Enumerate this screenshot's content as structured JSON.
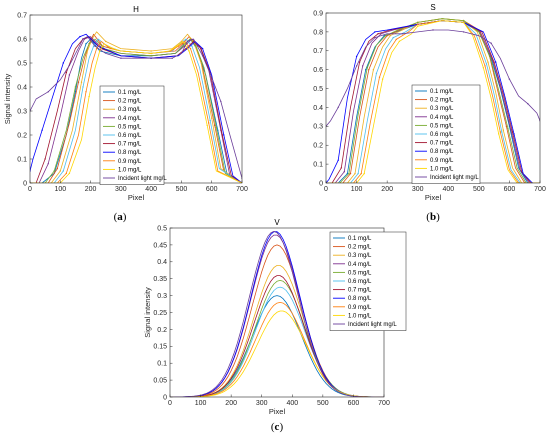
{
  "series_colors": [
    "#0072bd",
    "#d95319",
    "#edb120",
    "#7e2f8e",
    "#77ac30",
    "#4dbeee",
    "#a2142f",
    "#0000ff",
    "#ff7f0e",
    "#ffd700",
    "#6a3d9a"
  ],
  "captions": {
    "a": [
      "(",
      "a",
      ")"
    ],
    "b": [
      "(",
      "b",
      ")"
    ],
    "c": [
      "(",
      "c",
      ")"
    ]
  },
  "chart_data": [
    {
      "id": "a",
      "type": "line",
      "title": "H",
      "xlabel": "Pixel",
      "ylabel": "Signal intensity",
      "xlim": [
        0,
        700
      ],
      "ylim": [
        0,
        0.7
      ],
      "xticks": [
        0,
        100,
        200,
        300,
        400,
        500,
        600,
        700
      ],
      "yticks": [
        0,
        0.1,
        0.2,
        0.3,
        0.4,
        0.5,
        0.6,
        0.7
      ],
      "legend_position": "center-left",
      "legend": [
        "0.1 mg/L",
        "0.2 mg/L",
        "0.3 mg/L",
        "0.4 mg/L",
        "0.5 mg/L",
        "0.6 mg/L",
        "0.7 mg/L",
        "0.8 mg/L",
        "0.9 mg/L",
        "1.0 mg/L",
        "Incident light  mg/L"
      ],
      "series": [
        {
          "x": [
            0,
            40,
            80,
            120,
            150,
            170,
            185,
            200,
            230,
            300,
            400,
            480,
            510,
            530,
            550,
            580,
            620,
            650,
            700
          ],
          "y": [
            0,
            0,
            0.04,
            0.2,
            0.38,
            0.52,
            0.58,
            0.6,
            0.55,
            0.53,
            0.53,
            0.54,
            0.58,
            0.6,
            0.56,
            0.45,
            0.22,
            0.04,
            0
          ]
        },
        {
          "x": [
            0,
            60,
            90,
            130,
            160,
            180,
            195,
            210,
            240,
            300,
            400,
            480,
            505,
            525,
            545,
            570,
            610,
            640,
            700
          ],
          "y": [
            0,
            0,
            0.06,
            0.25,
            0.42,
            0.52,
            0.58,
            0.62,
            0.57,
            0.55,
            0.54,
            0.55,
            0.58,
            0.61,
            0.58,
            0.48,
            0.24,
            0.05,
            0
          ]
        },
        {
          "x": [
            0,
            70,
            100,
            140,
            170,
            190,
            205,
            220,
            250,
            300,
            400,
            470,
            500,
            520,
            540,
            565,
            600,
            630,
            700
          ],
          "y": [
            0,
            0,
            0.05,
            0.22,
            0.42,
            0.55,
            0.6,
            0.63,
            0.59,
            0.56,
            0.55,
            0.56,
            0.59,
            0.62,
            0.59,
            0.5,
            0.27,
            0.06,
            0
          ]
        },
        {
          "x": [
            0,
            30,
            60,
            100,
            130,
            160,
            180,
            200,
            240,
            300,
            400,
            480,
            510,
            535,
            560,
            590,
            630,
            660,
            700
          ],
          "y": [
            0,
            0,
            0.08,
            0.28,
            0.45,
            0.55,
            0.6,
            0.61,
            0.56,
            0.54,
            0.53,
            0.54,
            0.57,
            0.6,
            0.57,
            0.47,
            0.22,
            0.03,
            0
          ]
        },
        {
          "x": [
            0,
            50,
            80,
            120,
            150,
            175,
            195,
            215,
            245,
            300,
            400,
            480,
            505,
            528,
            548,
            575,
            615,
            645,
            700
          ],
          "y": [
            0,
            0,
            0.05,
            0.22,
            0.4,
            0.52,
            0.58,
            0.6,
            0.56,
            0.54,
            0.53,
            0.54,
            0.57,
            0.6,
            0.57,
            0.48,
            0.23,
            0.04,
            0
          ]
        },
        {
          "x": [
            0,
            80,
            110,
            150,
            175,
            195,
            210,
            225,
            255,
            300,
            400,
            470,
            495,
            515,
            535,
            560,
            595,
            625,
            700
          ],
          "y": [
            0,
            0,
            0.05,
            0.22,
            0.4,
            0.52,
            0.57,
            0.6,
            0.57,
            0.55,
            0.54,
            0.55,
            0.58,
            0.6,
            0.57,
            0.48,
            0.26,
            0.06,
            0
          ]
        },
        {
          "x": [
            0,
            20,
            50,
            90,
            120,
            150,
            175,
            195,
            235,
            300,
            400,
            485,
            515,
            540,
            565,
            595,
            635,
            665,
            700
          ],
          "y": [
            0,
            0,
            0.1,
            0.3,
            0.46,
            0.56,
            0.6,
            0.61,
            0.56,
            0.53,
            0.52,
            0.53,
            0.56,
            0.59,
            0.56,
            0.46,
            0.2,
            0.03,
            0
          ]
        },
        {
          "x": [
            0,
            10,
            40,
            80,
            110,
            140,
            165,
            185,
            225,
            300,
            400,
            490,
            520,
            545,
            570,
            600,
            640,
            670,
            700
          ],
          "y": [
            0.05,
            0.1,
            0.22,
            0.38,
            0.5,
            0.58,
            0.61,
            0.62,
            0.57,
            0.53,
            0.52,
            0.53,
            0.56,
            0.59,
            0.56,
            0.45,
            0.2,
            0.03,
            0
          ]
        },
        {
          "x": [
            0,
            90,
            120,
            160,
            185,
            205,
            220,
            235,
            265,
            300,
            400,
            465,
            490,
            510,
            530,
            555,
            590,
            620,
            700
          ],
          "y": [
            0,
            0,
            0.04,
            0.2,
            0.38,
            0.5,
            0.56,
            0.59,
            0.56,
            0.55,
            0.54,
            0.55,
            0.57,
            0.59,
            0.56,
            0.46,
            0.25,
            0.05,
            0
          ]
        },
        {
          "x": [
            0,
            100,
            130,
            170,
            195,
            215,
            230,
            245,
            275,
            300,
            400,
            460,
            485,
            505,
            525,
            550,
            585,
            615,
            700
          ],
          "y": [
            0,
            0,
            0.04,
            0.18,
            0.36,
            0.48,
            0.55,
            0.58,
            0.56,
            0.55,
            0.54,
            0.55,
            0.57,
            0.59,
            0.55,
            0.45,
            0.24,
            0.05,
            0
          ]
        },
        {
          "x": [
            0,
            20,
            60,
            100,
            130,
            155,
            175,
            190,
            215,
            250,
            300,
            400,
            470,
            500,
            520,
            540,
            570,
            600,
            630,
            660,
            700
          ],
          "y": [
            0.3,
            0.35,
            0.38,
            0.43,
            0.49,
            0.55,
            0.6,
            0.61,
            0.57,
            0.54,
            0.52,
            0.52,
            0.52,
            0.54,
            0.59,
            0.6,
            0.53,
            0.44,
            0.34,
            0.2,
            0.02
          ]
        }
      ]
    },
    {
      "id": "b",
      "type": "line",
      "title": "S",
      "xlabel": "Pixel",
      "ylabel": "",
      "xlim": [
        0,
        700
      ],
      "ylim": [
        0,
        0.9
      ],
      "xticks": [
        0,
        100,
        200,
        300,
        400,
        500,
        600,
        700
      ],
      "yticks": [
        0,
        0.1,
        0.2,
        0.3,
        0.4,
        0.5,
        0.6,
        0.7,
        0.8,
        0.9
      ],
      "legend_position": "center-right",
      "legend": [
        "0.1 mg/L",
        "0.2 mg/L",
        "0.3 mg/L",
        "0.4 mg/L",
        "0.5 mg/L",
        "0.6 mg/L",
        "0.7 mg/L",
        "0.8 mg/L",
        "0.9 mg/L",
        "1.0 mg/L",
        "Incident light  mg/L"
      ],
      "series": [
        {
          "x": [
            0,
            40,
            70,
            100,
            130,
            160,
            190,
            230,
            300,
            380,
            450,
            500,
            540,
            570,
            600,
            630,
            660,
            700
          ],
          "y": [
            0,
            0,
            0.05,
            0.35,
            0.6,
            0.72,
            0.78,
            0.8,
            0.84,
            0.86,
            0.85,
            0.8,
            0.66,
            0.5,
            0.3,
            0.08,
            0,
            0
          ]
        },
        {
          "x": [
            0,
            55,
            80,
            110,
            140,
            170,
            200,
            240,
            300,
            380,
            450,
            500,
            535,
            560,
            590,
            620,
            650,
            700
          ],
          "y": [
            0,
            0,
            0.05,
            0.35,
            0.6,
            0.72,
            0.78,
            0.81,
            0.85,
            0.87,
            0.86,
            0.81,
            0.67,
            0.5,
            0.3,
            0.08,
            0,
            0
          ]
        },
        {
          "x": [
            0,
            70,
            95,
            125,
            155,
            185,
            210,
            250,
            300,
            380,
            450,
            495,
            530,
            555,
            580,
            610,
            640,
            700
          ],
          "y": [
            0,
            0,
            0.05,
            0.35,
            0.6,
            0.72,
            0.78,
            0.81,
            0.85,
            0.87,
            0.86,
            0.8,
            0.64,
            0.48,
            0.28,
            0.08,
            0,
            0
          ]
        },
        {
          "x": [
            0,
            30,
            60,
            90,
            120,
            150,
            180,
            220,
            300,
            380,
            450,
            505,
            545,
            575,
            605,
            635,
            665,
            700
          ],
          "y": [
            0,
            0,
            0.06,
            0.38,
            0.62,
            0.74,
            0.79,
            0.81,
            0.84,
            0.86,
            0.85,
            0.8,
            0.65,
            0.48,
            0.28,
            0.07,
            0,
            0
          ]
        },
        {
          "x": [
            0,
            45,
            75,
            105,
            135,
            165,
            195,
            235,
            300,
            380,
            450,
            500,
            538,
            565,
            595,
            625,
            655,
            700
          ],
          "y": [
            0,
            0,
            0.05,
            0.36,
            0.61,
            0.73,
            0.78,
            0.81,
            0.85,
            0.87,
            0.86,
            0.8,
            0.66,
            0.49,
            0.29,
            0.08,
            0,
            0
          ]
        },
        {
          "x": [
            0,
            80,
            105,
            135,
            165,
            195,
            220,
            260,
            300,
            380,
            450,
            490,
            525,
            550,
            575,
            605,
            635,
            700
          ],
          "y": [
            0,
            0,
            0.05,
            0.33,
            0.58,
            0.71,
            0.77,
            0.8,
            0.84,
            0.86,
            0.85,
            0.79,
            0.63,
            0.47,
            0.27,
            0.07,
            0,
            0
          ]
        },
        {
          "x": [
            0,
            20,
            50,
            80,
            110,
            140,
            170,
            210,
            300,
            380,
            450,
            510,
            550,
            580,
            610,
            640,
            670,
            700
          ],
          "y": [
            0,
            0,
            0.08,
            0.4,
            0.64,
            0.75,
            0.79,
            0.81,
            0.84,
            0.86,
            0.85,
            0.8,
            0.64,
            0.47,
            0.27,
            0.06,
            0,
            0
          ]
        },
        {
          "x": [
            0,
            10,
            40,
            70,
            100,
            130,
            160,
            200,
            300,
            380,
            450,
            515,
            555,
            585,
            615,
            645,
            675,
            700
          ],
          "y": [
            0,
            0.02,
            0.12,
            0.45,
            0.67,
            0.76,
            0.8,
            0.81,
            0.84,
            0.86,
            0.85,
            0.8,
            0.64,
            0.46,
            0.26,
            0.05,
            0,
            0
          ]
        },
        {
          "x": [
            0,
            90,
            115,
            145,
            175,
            205,
            230,
            270,
            300,
            380,
            450,
            485,
            520,
            545,
            570,
            600,
            630,
            700
          ],
          "y": [
            0,
            0,
            0.05,
            0.32,
            0.56,
            0.7,
            0.76,
            0.8,
            0.84,
            0.86,
            0.85,
            0.78,
            0.62,
            0.46,
            0.27,
            0.07,
            0,
            0
          ]
        },
        {
          "x": [
            0,
            100,
            125,
            155,
            185,
            215,
            240,
            280,
            300,
            380,
            450,
            480,
            515,
            540,
            565,
            595,
            625,
            700
          ],
          "y": [
            0,
            0,
            0.05,
            0.3,
            0.55,
            0.69,
            0.75,
            0.79,
            0.83,
            0.86,
            0.85,
            0.78,
            0.61,
            0.45,
            0.26,
            0.07,
            0,
            0
          ]
        },
        {
          "x": [
            0,
            15,
            40,
            70,
            100,
            130,
            160,
            200,
            250,
            300,
            350,
            400,
            450,
            500,
            540,
            570,
            600,
            630,
            660,
            690,
            700
          ],
          "y": [
            0.3,
            0.33,
            0.4,
            0.5,
            0.62,
            0.72,
            0.77,
            0.79,
            0.79,
            0.8,
            0.81,
            0.81,
            0.8,
            0.78,
            0.74,
            0.66,
            0.55,
            0.46,
            0.42,
            0.37,
            0.33
          ]
        }
      ]
    },
    {
      "id": "c",
      "type": "line",
      "title": "V",
      "xlabel": "Pixel",
      "ylabel": "Signal intensity",
      "xlim": [
        0,
        700
      ],
      "ylim": [
        0,
        0.5
      ],
      "xticks": [
        0,
        100,
        200,
        300,
        400,
        500,
        600,
        700
      ],
      "yticks": [
        0,
        0.05,
        0.1,
        0.15,
        0.2,
        0.25,
        0.3,
        0.35,
        0.4,
        0.45,
        0.5
      ],
      "legend_position": "top-right",
      "legend": [
        "0.1 mg/L",
        "0.2 mg/L",
        "0.3 mg/L",
        "0.4 mg/L",
        "0.5 mg/L",
        "0.6 mg/L",
        "0.7 mg/L",
        "0.8 mg/L",
        "0.9 mg/L",
        "1.0 mg/L",
        "Incident light  mg/L"
      ],
      "peaks": [
        {
          "peak": 0.3,
          "center": 350,
          "width": 80
        },
        {
          "peak": 0.45,
          "center": 350,
          "width": 80
        },
        {
          "peak": 0.39,
          "center": 355,
          "width": 80
        },
        {
          "peak": 0.48,
          "center": 345,
          "width": 80
        },
        {
          "peak": 0.345,
          "center": 360,
          "width": 80
        },
        {
          "peak": 0.325,
          "center": 360,
          "width": 80
        },
        {
          "peak": 0.36,
          "center": 355,
          "width": 80
        },
        {
          "peak": 0.49,
          "center": 345,
          "width": 80
        },
        {
          "peak": 0.28,
          "center": 360,
          "width": 80
        },
        {
          "peak": 0.255,
          "center": 365,
          "width": 80
        },
        {
          "peak": 0.49,
          "center": 340,
          "width": 80
        }
      ]
    }
  ]
}
